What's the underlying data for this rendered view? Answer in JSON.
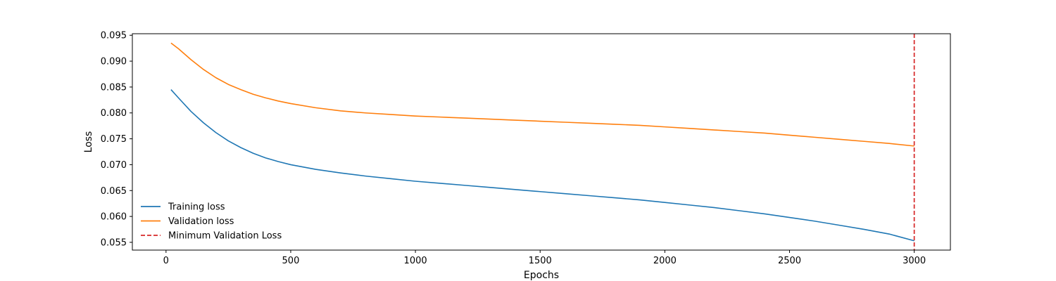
{
  "chart_data": {
    "type": "line",
    "title": "",
    "xlabel": "Epochs",
    "ylabel": "Loss",
    "xlim": [
      -135,
      3145
    ],
    "ylim": [
      0.0535,
      0.0953
    ],
    "xticks": [
      0,
      500,
      1000,
      1500,
      2000,
      2500,
      3000
    ],
    "xtick_labels": [
      "0",
      "500",
      "1000",
      "1500",
      "2000",
      "2500",
      "3000"
    ],
    "yticks": [
      0.055,
      0.06,
      0.065,
      0.07,
      0.075,
      0.08,
      0.085,
      0.09,
      0.095
    ],
    "ytick_labels": [
      "0.055",
      "0.060",
      "0.065",
      "0.070",
      "0.075",
      "0.080",
      "0.085",
      "0.090",
      "0.095"
    ],
    "grid": false,
    "legend_position": "lower-left",
    "series": [
      {
        "name": "Training loss",
        "color": "#1f77b4",
        "x": [
          20,
          50,
          100,
          150,
          200,
          250,
          300,
          350,
          400,
          450,
          500,
          600,
          700,
          800,
          900,
          1000,
          1100,
          1200,
          1300,
          1400,
          1500,
          1600,
          1700,
          1800,
          1900,
          2000,
          2100,
          2200,
          2300,
          2400,
          2500,
          2600,
          2700,
          2800,
          2900,
          3000
        ],
        "values": [
          0.0845,
          0.0829,
          0.0803,
          0.0781,
          0.0762,
          0.0746,
          0.0733,
          0.0722,
          0.0713,
          0.0706,
          0.07,
          0.0691,
          0.0684,
          0.0678,
          0.0673,
          0.0668,
          0.0664,
          0.066,
          0.0656,
          0.0652,
          0.0648,
          0.0644,
          0.064,
          0.0636,
          0.0632,
          0.0627,
          0.0622,
          0.0617,
          0.0611,
          0.0605,
          0.0598,
          0.0591,
          0.0583,
          0.0575,
          0.0566,
          0.0553
        ]
      },
      {
        "name": "Validation loss",
        "color": "#ff7f0e",
        "x": [
          20,
          50,
          100,
          150,
          200,
          250,
          300,
          350,
          400,
          450,
          500,
          600,
          700,
          800,
          900,
          1000,
          1100,
          1200,
          1300,
          1400,
          1500,
          1600,
          1700,
          1800,
          1900,
          2000,
          2100,
          2200,
          2300,
          2400,
          2500,
          2600,
          2700,
          2800,
          2900,
          3000
        ],
        "values": [
          0.0935,
          0.0924,
          0.0903,
          0.0884,
          0.0868,
          0.0855,
          0.0845,
          0.0836,
          0.0829,
          0.0823,
          0.0818,
          0.081,
          0.0804,
          0.08,
          0.0797,
          0.0794,
          0.0792,
          0.079,
          0.0788,
          0.0786,
          0.0784,
          0.0782,
          0.078,
          0.0778,
          0.0776,
          0.0773,
          0.077,
          0.0767,
          0.0764,
          0.0761,
          0.0757,
          0.0753,
          0.0749,
          0.0745,
          0.0741,
          0.0736
        ]
      }
    ],
    "annotations": [
      {
        "name": "Minimum Validation Loss",
        "type": "vline",
        "x": 3000,
        "color": "#d62728",
        "style": "dashed"
      }
    ]
  }
}
